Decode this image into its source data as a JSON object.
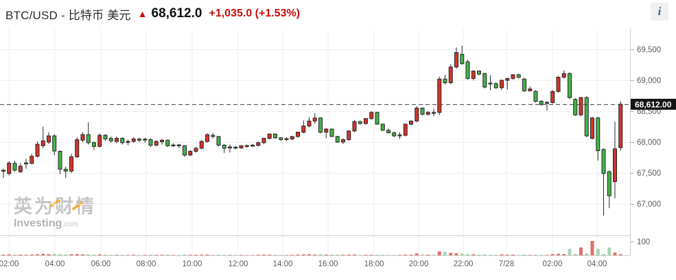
{
  "header": {
    "title": "BTC/USD - 比特币 美元",
    "arrow": "▲",
    "price": "68,612.0",
    "change": "+1,035.0 (+1.53%)",
    "info_icon": "i"
  },
  "watermark": {
    "cn": "英为财情",
    "en": "Investing",
    "dotcom": ".com"
  },
  "colors": {
    "up": "#d2342b",
    "down": "#43b348",
    "candle_stroke": "#262626",
    "up_volume": "#e0716a",
    "down_volume": "#a8d4b4",
    "accent_red": "#cb0c0c",
    "badge_bg": "#141414",
    "badge_text": "#ffffff",
    "grid": "#efefef",
    "axis": "#cccccc",
    "label": "#5c5c5c",
    "dashed_line": "#3c3c3c"
  },
  "chart_data": {
    "type": "candlestick",
    "interval": "15m",
    "grid": true,
    "x_labels": [
      "02:00",
      "04:00",
      "06:00",
      "08:00",
      "10:00",
      "12:00",
      "14:00",
      "16:00",
      "18:00",
      "20:00",
      "22:00",
      "7/28",
      "02:00",
      "04:00"
    ],
    "y_axis_side": "right",
    "y_labels_price": [
      "69,500",
      "69,000",
      "68,500",
      "68,000",
      "67,500",
      "67,000"
    ],
    "y_values_price": [
      69500,
      69000,
      68500,
      68000,
      67500,
      67000
    ],
    "price_axis_range": [
      66510,
      69830
    ],
    "y_label_volume": "100",
    "volume_axis_max": 100,
    "last_price_label": "68,612.00",
    "last_price_value": 68612,
    "candles_ohlcv": [
      [
        67530,
        67570,
        67420,
        67540,
        5
      ],
      [
        67490,
        67690,
        67460,
        67660,
        7
      ],
      [
        67655,
        67700,
        67520,
        67545,
        6
      ],
      [
        67520,
        67660,
        67500,
        67610,
        5
      ],
      [
        67650,
        67730,
        67570,
        67660,
        4
      ],
      [
        67655,
        67810,
        67640,
        67770,
        6
      ],
      [
        67770,
        68010,
        67750,
        67965,
        8
      ],
      [
        67940,
        68250,
        67900,
        68020,
        10
      ],
      [
        68000,
        68160,
        67970,
        68100,
        8
      ],
      [
        68100,
        68130,
        67790,
        67855,
        11
      ],
      [
        67850,
        67870,
        67480,
        67560,
        9
      ],
      [
        67560,
        67600,
        67420,
        67530,
        7
      ],
      [
        67530,
        67810,
        67500,
        67760,
        8
      ],
      [
        67760,
        68080,
        67740,
        68040,
        9
      ],
      [
        68030,
        68160,
        68000,
        68120,
        7
      ],
      [
        68120,
        68320,
        67960,
        67990,
        8
      ],
      [
        67990,
        68010,
        67870,
        67930,
        5
      ],
      [
        67930,
        68140,
        67910,
        68110,
        7
      ],
      [
        68110,
        68130,
        68020,
        68050,
        5
      ],
      [
        68060,
        68090,
        67990,
        68020,
        4
      ],
      [
        68010,
        68090,
        67980,
        68060,
        4
      ],
      [
        68060,
        68080,
        67960,
        67990,
        4
      ],
      [
        67995,
        68040,
        67950,
        68010,
        3
      ],
      [
        68010,
        68080,
        67990,
        68050,
        4
      ],
      [
        68050,
        68070,
        68000,
        68030,
        3
      ],
      [
        68035,
        68070,
        67990,
        68045,
        3
      ],
      [
        68040,
        68060,
        67920,
        67950,
        5
      ],
      [
        67950,
        68030,
        67930,
        68010,
        4
      ],
      [
        68005,
        68050,
        67960,
        68030,
        4
      ],
      [
        68030,
        68040,
        67920,
        67940,
        5
      ],
      [
        67940,
        67980,
        67920,
        67950,
        3
      ],
      [
        67950,
        67970,
        67900,
        67945,
        3
      ],
      [
        67940,
        67950,
        67760,
        67790,
        7
      ],
      [
        67790,
        67870,
        67770,
        67850,
        4
      ],
      [
        67850,
        67920,
        67830,
        67900,
        4
      ],
      [
        67900,
        68030,
        67880,
        68010,
        5
      ],
      [
        68010,
        68140,
        67990,
        68120,
        6
      ],
      [
        68110,
        68150,
        68060,
        68090,
        4
      ],
      [
        68090,
        68100,
        67930,
        67950,
        6
      ],
      [
        67950,
        67970,
        67820,
        67900,
        4
      ],
      [
        67905,
        67960,
        67830,
        67920,
        3
      ],
      [
        67915,
        67940,
        67880,
        67905,
        3
      ],
      [
        67905,
        67950,
        67890,
        67940,
        3
      ],
      [
        67935,
        67960,
        67910,
        67935,
        2
      ],
      [
        67940,
        67970,
        67920,
        67945,
        2
      ],
      [
        67945,
        68010,
        67930,
        67990,
        4
      ],
      [
        67990,
        68070,
        67970,
        68060,
        5
      ],
      [
        68060,
        68140,
        68040,
        68130,
        5
      ],
      [
        68130,
        68140,
        68050,
        68070,
        4
      ],
      [
        68070,
        68080,
        68020,
        68040,
        3
      ],
      [
        68045,
        68080,
        68020,
        68050,
        3
      ],
      [
        68050,
        68100,
        68030,
        68090,
        4
      ],
      [
        68090,
        68170,
        68070,
        68160,
        5
      ],
      [
        68160,
        68350,
        68140,
        68260,
        7
      ],
      [
        68260,
        68400,
        68240,
        68340,
        8
      ],
      [
        68340,
        68470,
        68300,
        68390,
        6
      ],
      [
        68390,
        68400,
        68140,
        68160,
        8
      ],
      [
        68160,
        68230,
        68060,
        68210,
        5
      ],
      [
        68210,
        68220,
        68080,
        68090,
        5
      ],
      [
        68090,
        68100,
        67990,
        68000,
        5
      ],
      [
        68000,
        68060,
        67970,
        68040,
        4
      ],
      [
        68040,
        68190,
        68020,
        68180,
        5
      ],
      [
        68180,
        68360,
        68160,
        68330,
        6
      ],
      [
        68330,
        68350,
        68280,
        68300,
        3
      ],
      [
        68300,
        68390,
        68280,
        68380,
        4
      ],
      [
        68380,
        68500,
        68360,
        68480,
        4
      ],
      [
        68480,
        68490,
        68280,
        68290,
        5
      ],
      [
        68290,
        68300,
        68180,
        68190,
        4
      ],
      [
        68190,
        68220,
        68140,
        68150,
        3
      ],
      [
        68150,
        68170,
        68080,
        68100,
        3
      ],
      [
        68105,
        68160,
        68050,
        68110,
        3
      ],
      [
        68110,
        68300,
        68090,
        68290,
        5
      ],
      [
        68290,
        68350,
        68270,
        68340,
        4
      ],
      [
        68340,
        68580,
        68320,
        68550,
        13
      ],
      [
        68550,
        68560,
        68430,
        68450,
        7
      ],
      [
        68450,
        68500,
        68430,
        68480,
        5
      ],
      [
        68475,
        68540,
        68420,
        68470,
        4
      ],
      [
        68480,
        69060,
        68440,
        69020,
        28
      ],
      [
        69020,
        69090,
        68930,
        68960,
        24
      ],
      [
        68960,
        69260,
        68940,
        69215,
        18
      ],
      [
        69215,
        69530,
        69190,
        69450,
        15
      ],
      [
        69420,
        69560,
        69250,
        69270,
        13
      ],
      [
        69300,
        69330,
        69010,
        69030,
        9
      ],
      [
        69030,
        69160,
        69000,
        69150,
        7
      ],
      [
        69150,
        69160,
        69080,
        69100,
        5
      ],
      [
        69110,
        69120,
        68870,
        68890,
        7
      ],
      [
        68950,
        69080,
        68840,
        68945,
        4
      ],
      [
        68945,
        68970,
        68860,
        68880,
        4
      ],
      [
        68880,
        69010,
        68840,
        69000,
        7
      ],
      [
        69000,
        69040,
        68850,
        69030,
        5
      ],
      [
        69030,
        69100,
        69010,
        69090,
        5
      ],
      [
        69090,
        69110,
        69030,
        69050,
        3
      ],
      [
        69020,
        69040,
        68810,
        68830,
        5
      ],
      [
        68830,
        68900,
        68820,
        68860,
        3
      ],
      [
        68820,
        68840,
        68640,
        68660,
        5
      ],
      [
        68660,
        68680,
        68590,
        68610,
        3
      ],
      [
        68630,
        68660,
        68510,
        68640,
        3
      ],
      [
        68640,
        68840,
        68620,
        68820,
        9
      ],
      [
        68820,
        69070,
        68800,
        69050,
        11
      ],
      [
        69050,
        69160,
        69030,
        69110,
        9
      ],
      [
        69110,
        69130,
        68700,
        68720,
        48
      ],
      [
        68690,
        68710,
        68420,
        68440,
        10
      ],
      [
        68440,
        68730,
        68420,
        68720,
        57
      ],
      [
        68720,
        68740,
        68080,
        68100,
        14
      ],
      [
        68060,
        68410,
        68040,
        68390,
        105
      ],
      [
        68390,
        68410,
        67700,
        67860,
        48
      ],
      [
        67880,
        67900,
        66810,
        67490,
        10
      ],
      [
        67520,
        67540,
        66930,
        67130,
        57
      ],
      [
        67360,
        68330,
        67090,
        67890,
        20
      ],
      [
        67910,
        68660,
        67860,
        68612,
        8
      ]
    ]
  }
}
